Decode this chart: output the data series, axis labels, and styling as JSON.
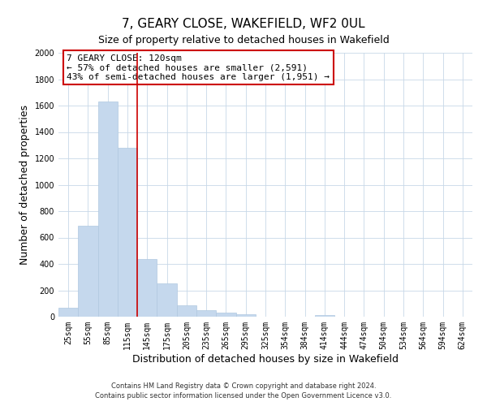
{
  "title": "7, GEARY CLOSE, WAKEFIELD, WF2 0UL",
  "subtitle": "Size of property relative to detached houses in Wakefield",
  "xlabel": "Distribution of detached houses by size in Wakefield",
  "ylabel": "Number of detached properties",
  "bar_labels": [
    "25sqm",
    "55sqm",
    "85sqm",
    "115sqm",
    "145sqm",
    "175sqm",
    "205sqm",
    "235sqm",
    "265sqm",
    "295sqm",
    "325sqm",
    "354sqm",
    "384sqm",
    "414sqm",
    "444sqm",
    "474sqm",
    "504sqm",
    "534sqm",
    "564sqm",
    "594sqm",
    "624sqm"
  ],
  "bar_values": [
    65,
    690,
    1630,
    1280,
    435,
    255,
    88,
    52,
    30,
    20,
    0,
    0,
    0,
    15,
    0,
    0,
    0,
    0,
    0,
    0,
    0
  ],
  "bar_color": "#c5d8ed",
  "bar_edge_color": "#b0c8e0",
  "vline_color": "#cc0000",
  "annotation_title": "7 GEARY CLOSE: 120sqm",
  "annotation_line1": "← 57% of detached houses are smaller (2,591)",
  "annotation_line2": "43% of semi-detached houses are larger (1,951) →",
  "annotation_box_color": "#ffffff",
  "annotation_box_edge": "#cc0000",
  "ylim": [
    0,
    2000
  ],
  "yticks": [
    0,
    200,
    400,
    600,
    800,
    1000,
    1200,
    1400,
    1600,
    1800,
    2000
  ],
  "footnote1": "Contains HM Land Registry data © Crown copyright and database right 2024.",
  "footnote2": "Contains public sector information licensed under the Open Government Licence v3.0.",
  "bg_color": "#ffffff",
  "grid_color": "#c8d8e8",
  "title_fontsize": 11,
  "subtitle_fontsize": 9,
  "tick_fontsize": 7,
  "label_fontsize": 9,
  "annotation_fontsize": 8,
  "footnote_fontsize": 6
}
